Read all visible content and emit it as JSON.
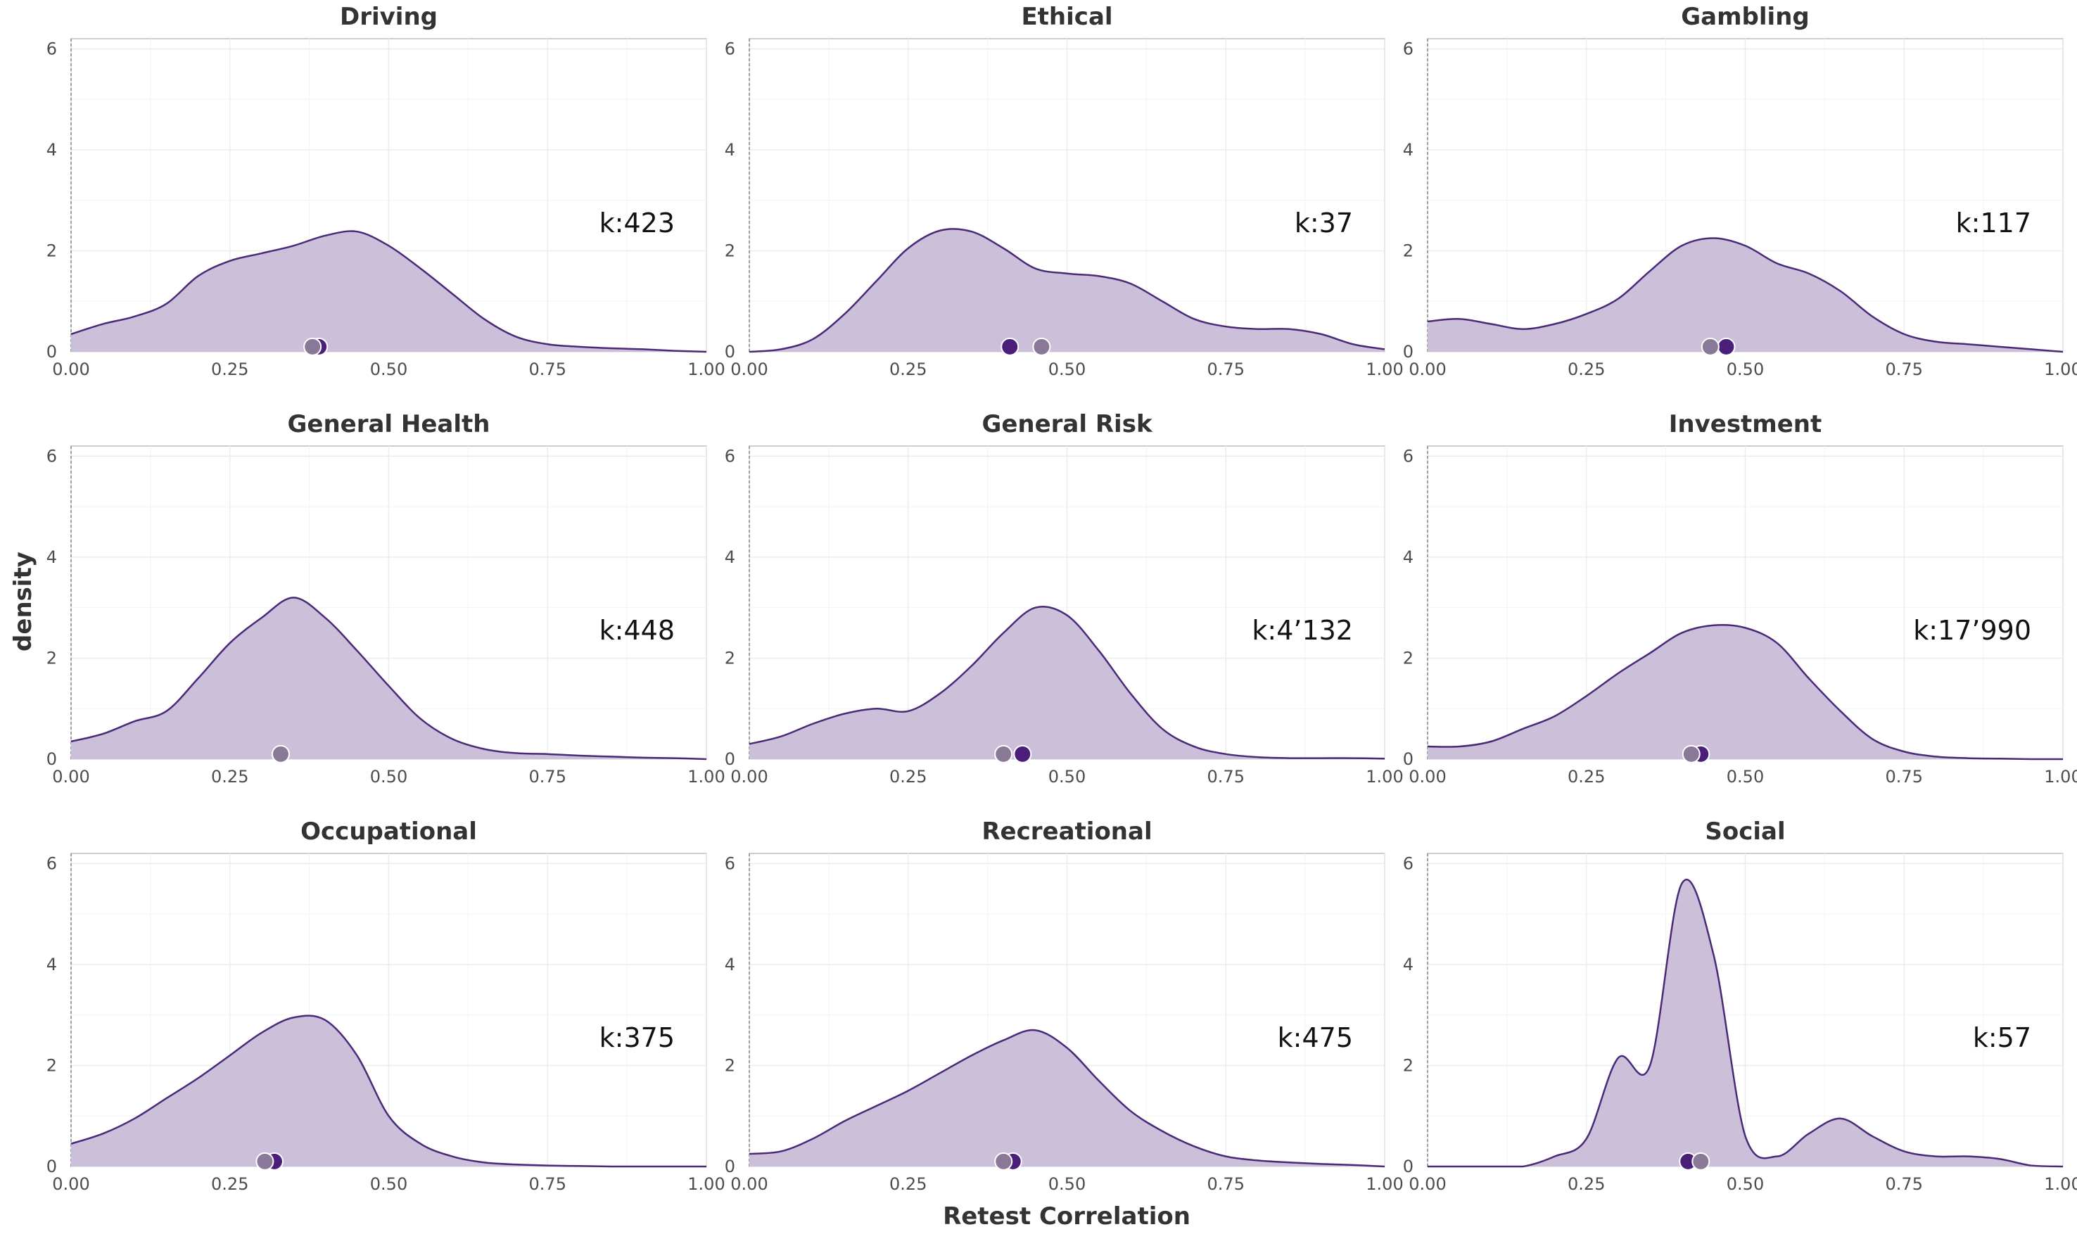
{
  "chart_data": {
    "type": "area",
    "xlabel": "Retest Correlation",
    "ylabel": "density",
    "xlim": [
      0,
      1
    ],
    "ylim": [
      0,
      6.2
    ],
    "x_ticks": [
      "0.00",
      "0.25",
      "0.50",
      "0.75",
      "1.00"
    ],
    "x_tick_values": [
      0,
      0.25,
      0.5,
      0.75,
      1.0
    ],
    "y_ticks": [
      "0",
      "2",
      "4",
      "6"
    ],
    "y_tick_values": [
      0,
      2,
      4,
      6
    ],
    "grid": true,
    "fill_color": "#cbbfda",
    "line_color": "#4a2a78",
    "point_dark_color": "#4b1e7a",
    "point_light_color": "#8a7898",
    "x": [
      0,
      0.05,
      0.1,
      0.15,
      0.2,
      0.25,
      0.3,
      0.35,
      0.4,
      0.45,
      0.5,
      0.55,
      0.6,
      0.65,
      0.7,
      0.75,
      0.8,
      0.85,
      0.9,
      0.95,
      1.0
    ],
    "panels": [
      {
        "title": "Driving",
        "k_label": "k:423",
        "y": [
          0.35,
          0.55,
          0.7,
          0.95,
          1.5,
          1.8,
          1.95,
          2.1,
          2.3,
          2.38,
          2.1,
          1.65,
          1.15,
          0.65,
          0.3,
          0.15,
          0.1,
          0.07,
          0.05,
          0.02,
          0.0
        ],
        "point_dark": 0.39,
        "point_light": 0.38
      },
      {
        "title": "Ethical",
        "k_label": "k:37",
        "y": [
          0.0,
          0.05,
          0.25,
          0.75,
          1.4,
          2.05,
          2.4,
          2.38,
          2.05,
          1.65,
          1.55,
          1.5,
          1.35,
          1.0,
          0.65,
          0.5,
          0.45,
          0.45,
          0.35,
          0.15,
          0.05
        ],
        "point_dark": 0.41,
        "point_light": 0.46
      },
      {
        "title": "Gambling",
        "k_label": "k:117",
        "y": [
          0.6,
          0.65,
          0.55,
          0.45,
          0.55,
          0.75,
          1.05,
          1.6,
          2.1,
          2.25,
          2.1,
          1.75,
          1.55,
          1.2,
          0.7,
          0.35,
          0.2,
          0.15,
          0.1,
          0.05,
          0.0
        ],
        "point_dark": 0.47,
        "point_light": 0.445
      },
      {
        "title": "General Health",
        "k_label": "k:448",
        "y": [
          0.35,
          0.5,
          0.75,
          0.95,
          1.6,
          2.3,
          2.8,
          3.2,
          2.8,
          2.15,
          1.45,
          0.8,
          0.4,
          0.2,
          0.12,
          0.1,
          0.07,
          0.05,
          0.03,
          0.02,
          0.0
        ],
        "point_dark": 0.33,
        "point_light": 0.33
      },
      {
        "title": "General Risk",
        "k_label": "k:4’132",
        "y": [
          0.3,
          0.45,
          0.7,
          0.9,
          1.0,
          0.95,
          1.3,
          1.85,
          2.5,
          3.0,
          2.85,
          2.15,
          1.3,
          0.6,
          0.25,
          0.1,
          0.04,
          0.02,
          0.02,
          0.02,
          0.01
        ],
        "point_dark": 0.43,
        "point_light": 0.4
      },
      {
        "title": "Investment",
        "k_label": "k:17’990",
        "y": [
          0.25,
          0.25,
          0.35,
          0.6,
          0.85,
          1.25,
          1.7,
          2.1,
          2.5,
          2.65,
          2.6,
          2.3,
          1.6,
          0.95,
          0.4,
          0.15,
          0.05,
          0.02,
          0.01,
          0.0,
          0.0
        ],
        "point_dark": 0.43,
        "point_light": 0.415
      },
      {
        "title": "Occupational",
        "k_label": "k:375",
        "y": [
          0.45,
          0.65,
          0.95,
          1.35,
          1.75,
          2.2,
          2.65,
          2.95,
          2.9,
          2.2,
          1.0,
          0.45,
          0.2,
          0.08,
          0.04,
          0.02,
          0.01,
          0.0,
          0.0,
          0.0,
          0.0
        ],
        "point_dark": 0.32,
        "point_light": 0.305
      },
      {
        "title": "Recreational",
        "k_label": "k:475",
        "y": [
          0.25,
          0.3,
          0.55,
          0.9,
          1.2,
          1.5,
          1.85,
          2.2,
          2.5,
          2.7,
          2.35,
          1.7,
          1.1,
          0.7,
          0.4,
          0.2,
          0.12,
          0.08,
          0.05,
          0.03,
          0.0
        ],
        "point_dark": 0.415,
        "point_light": 0.4
      },
      {
        "title": "Social",
        "k_label": "k:57",
        "y": [
          0.0,
          0.0,
          0.0,
          0.0,
          0.2,
          0.55,
          2.15,
          2.0,
          5.6,
          4.2,
          0.6,
          0.2,
          0.65,
          0.95,
          0.6,
          0.3,
          0.2,
          0.2,
          0.15,
          0.02,
          0.0
        ],
        "point_dark": 0.41,
        "point_light": 0.43
      }
    ]
  }
}
